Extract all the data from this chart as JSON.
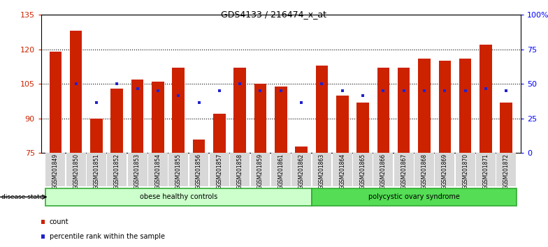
{
  "title": "GDS4133 / 216474_x_at",
  "samples": [
    "GSM201849",
    "GSM201850",
    "GSM201851",
    "GSM201852",
    "GSM201853",
    "GSM201854",
    "GSM201855",
    "GSM201856",
    "GSM201857",
    "GSM201858",
    "GSM201859",
    "GSM201861",
    "GSM201862",
    "GSM201863",
    "GSM201864",
    "GSM201865",
    "GSM201866",
    "GSM201867",
    "GSM201868",
    "GSM201869",
    "GSM201870",
    "GSM201871",
    "GSM201872"
  ],
  "counts": [
    119,
    128,
    90,
    103,
    107,
    106,
    112,
    81,
    92,
    112,
    105,
    104,
    78,
    113,
    100,
    97,
    112,
    112,
    116,
    115,
    116,
    122,
    97
  ],
  "dot_yvals": [
    null,
    105,
    97,
    105,
    103,
    102,
    100,
    97,
    102,
    105,
    102,
    102,
    97,
    105,
    102,
    100,
    102,
    102,
    102,
    102,
    102,
    103,
    102
  ],
  "group1_label": "obese healthy controls",
  "group2_label": "polycystic ovary syndrome",
  "group1_count": 13,
  "bar_color": "#cc2200",
  "dot_color": "#2222cc",
  "group1_bg": "#ccffcc",
  "group2_bg": "#55dd55",
  "ylim_left": [
    75,
    135
  ],
  "ylim_right": [
    0,
    100
  ],
  "yticks_left": [
    75,
    90,
    105,
    120,
    135
  ],
  "yticks_right": [
    0,
    25,
    50,
    75,
    100
  ],
  "grid_vals": [
    90,
    105,
    120
  ]
}
